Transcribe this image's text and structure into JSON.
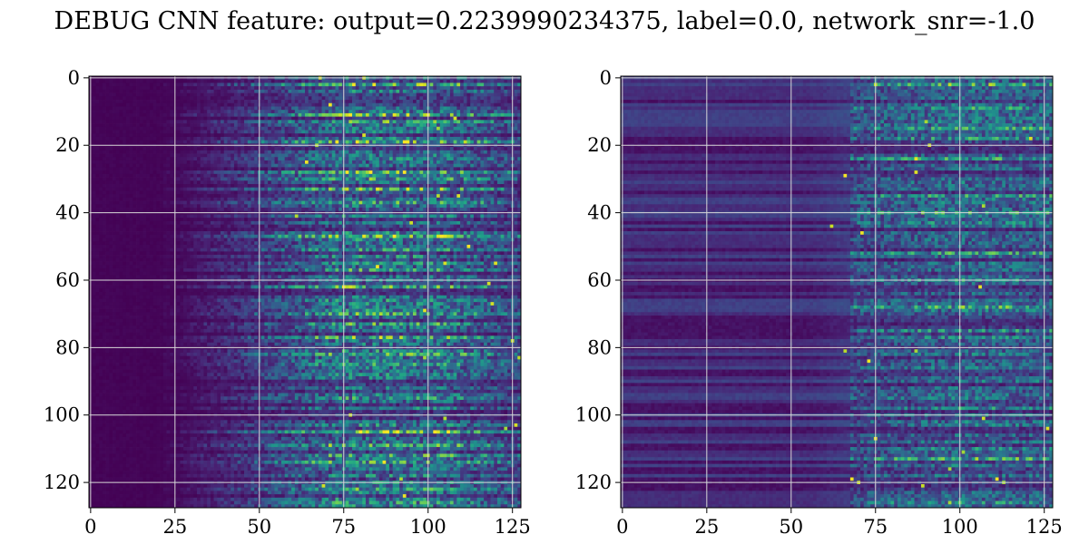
{
  "figure": {
    "title": "DEBUG CNN feature: output=0.2239990234375, label=0.0, network_snr=-1.0"
  },
  "chart_data": [
    {
      "type": "heatmap",
      "title": "",
      "xlabel": "",
      "ylabel": "",
      "colormap": "viridis",
      "grid": true,
      "rows": 128,
      "cols": 128,
      "xlim": [
        -0.5,
        127.5
      ],
      "ylim": [
        127.5,
        -0.5
      ],
      "x_ticks": [
        0,
        25,
        50,
        75,
        100,
        125
      ],
      "y_ticks": [
        0,
        20,
        40,
        60,
        80,
        100,
        120
      ],
      "x_tick_labels": [
        "0",
        "25",
        "50",
        "75",
        "100",
        "125"
      ],
      "y_tick_labels": [
        "0",
        "20",
        "40",
        "60",
        "80",
        "100",
        "120"
      ],
      "value_profile": {
        "description_by_column": "near-zero for columns 0-24, rising 25-75, highest 75-105, falling after 105",
        "column_breakpoints": [
          0,
          25,
          45,
          75,
          105,
          127
        ],
        "mean_intensity": [
          0.0,
          0.02,
          0.12,
          0.32,
          0.3,
          0.18
        ],
        "bright_rows": [
          2,
          11,
          13,
          19,
          28,
          30,
          33,
          37,
          47,
          51,
          57,
          62,
          66,
          70,
          73,
          77,
          82,
          85,
          95,
          105,
          109,
          112,
          114,
          122,
          126
        ]
      }
    },
    {
      "type": "heatmap",
      "title": "",
      "xlabel": "",
      "ylabel": "",
      "colormap": "viridis",
      "grid": true,
      "rows": 128,
      "cols": 128,
      "xlim": [
        -0.5,
        127.5
      ],
      "ylim": [
        127.5,
        -0.5
      ],
      "x_ticks": [
        0,
        25,
        50,
        75,
        100,
        125
      ],
      "y_ticks": [
        0,
        20,
        40,
        60,
        80,
        100,
        120
      ],
      "x_tick_labels": [
        "0",
        "25",
        "50",
        "75",
        "100",
        "125"
      ],
      "y_tick_labels": [
        "0",
        "20",
        "40",
        "60",
        "80",
        "100",
        "120"
      ],
      "value_profile": {
        "description_by_column": "low banded background for columns 0-70 with horizontal stripes, noisy higher values 70-127",
        "column_breakpoints": [
          0,
          25,
          50,
          70,
          100,
          127
        ],
        "mean_intensity": [
          0.12,
          0.12,
          0.1,
          0.22,
          0.28,
          0.26
        ],
        "bright_rows": [
          2,
          9,
          15,
          18,
          24,
          35,
          40,
          43,
          52,
          60,
          68,
          75,
          77,
          98,
          110,
          113,
          126
        ]
      }
    }
  ]
}
